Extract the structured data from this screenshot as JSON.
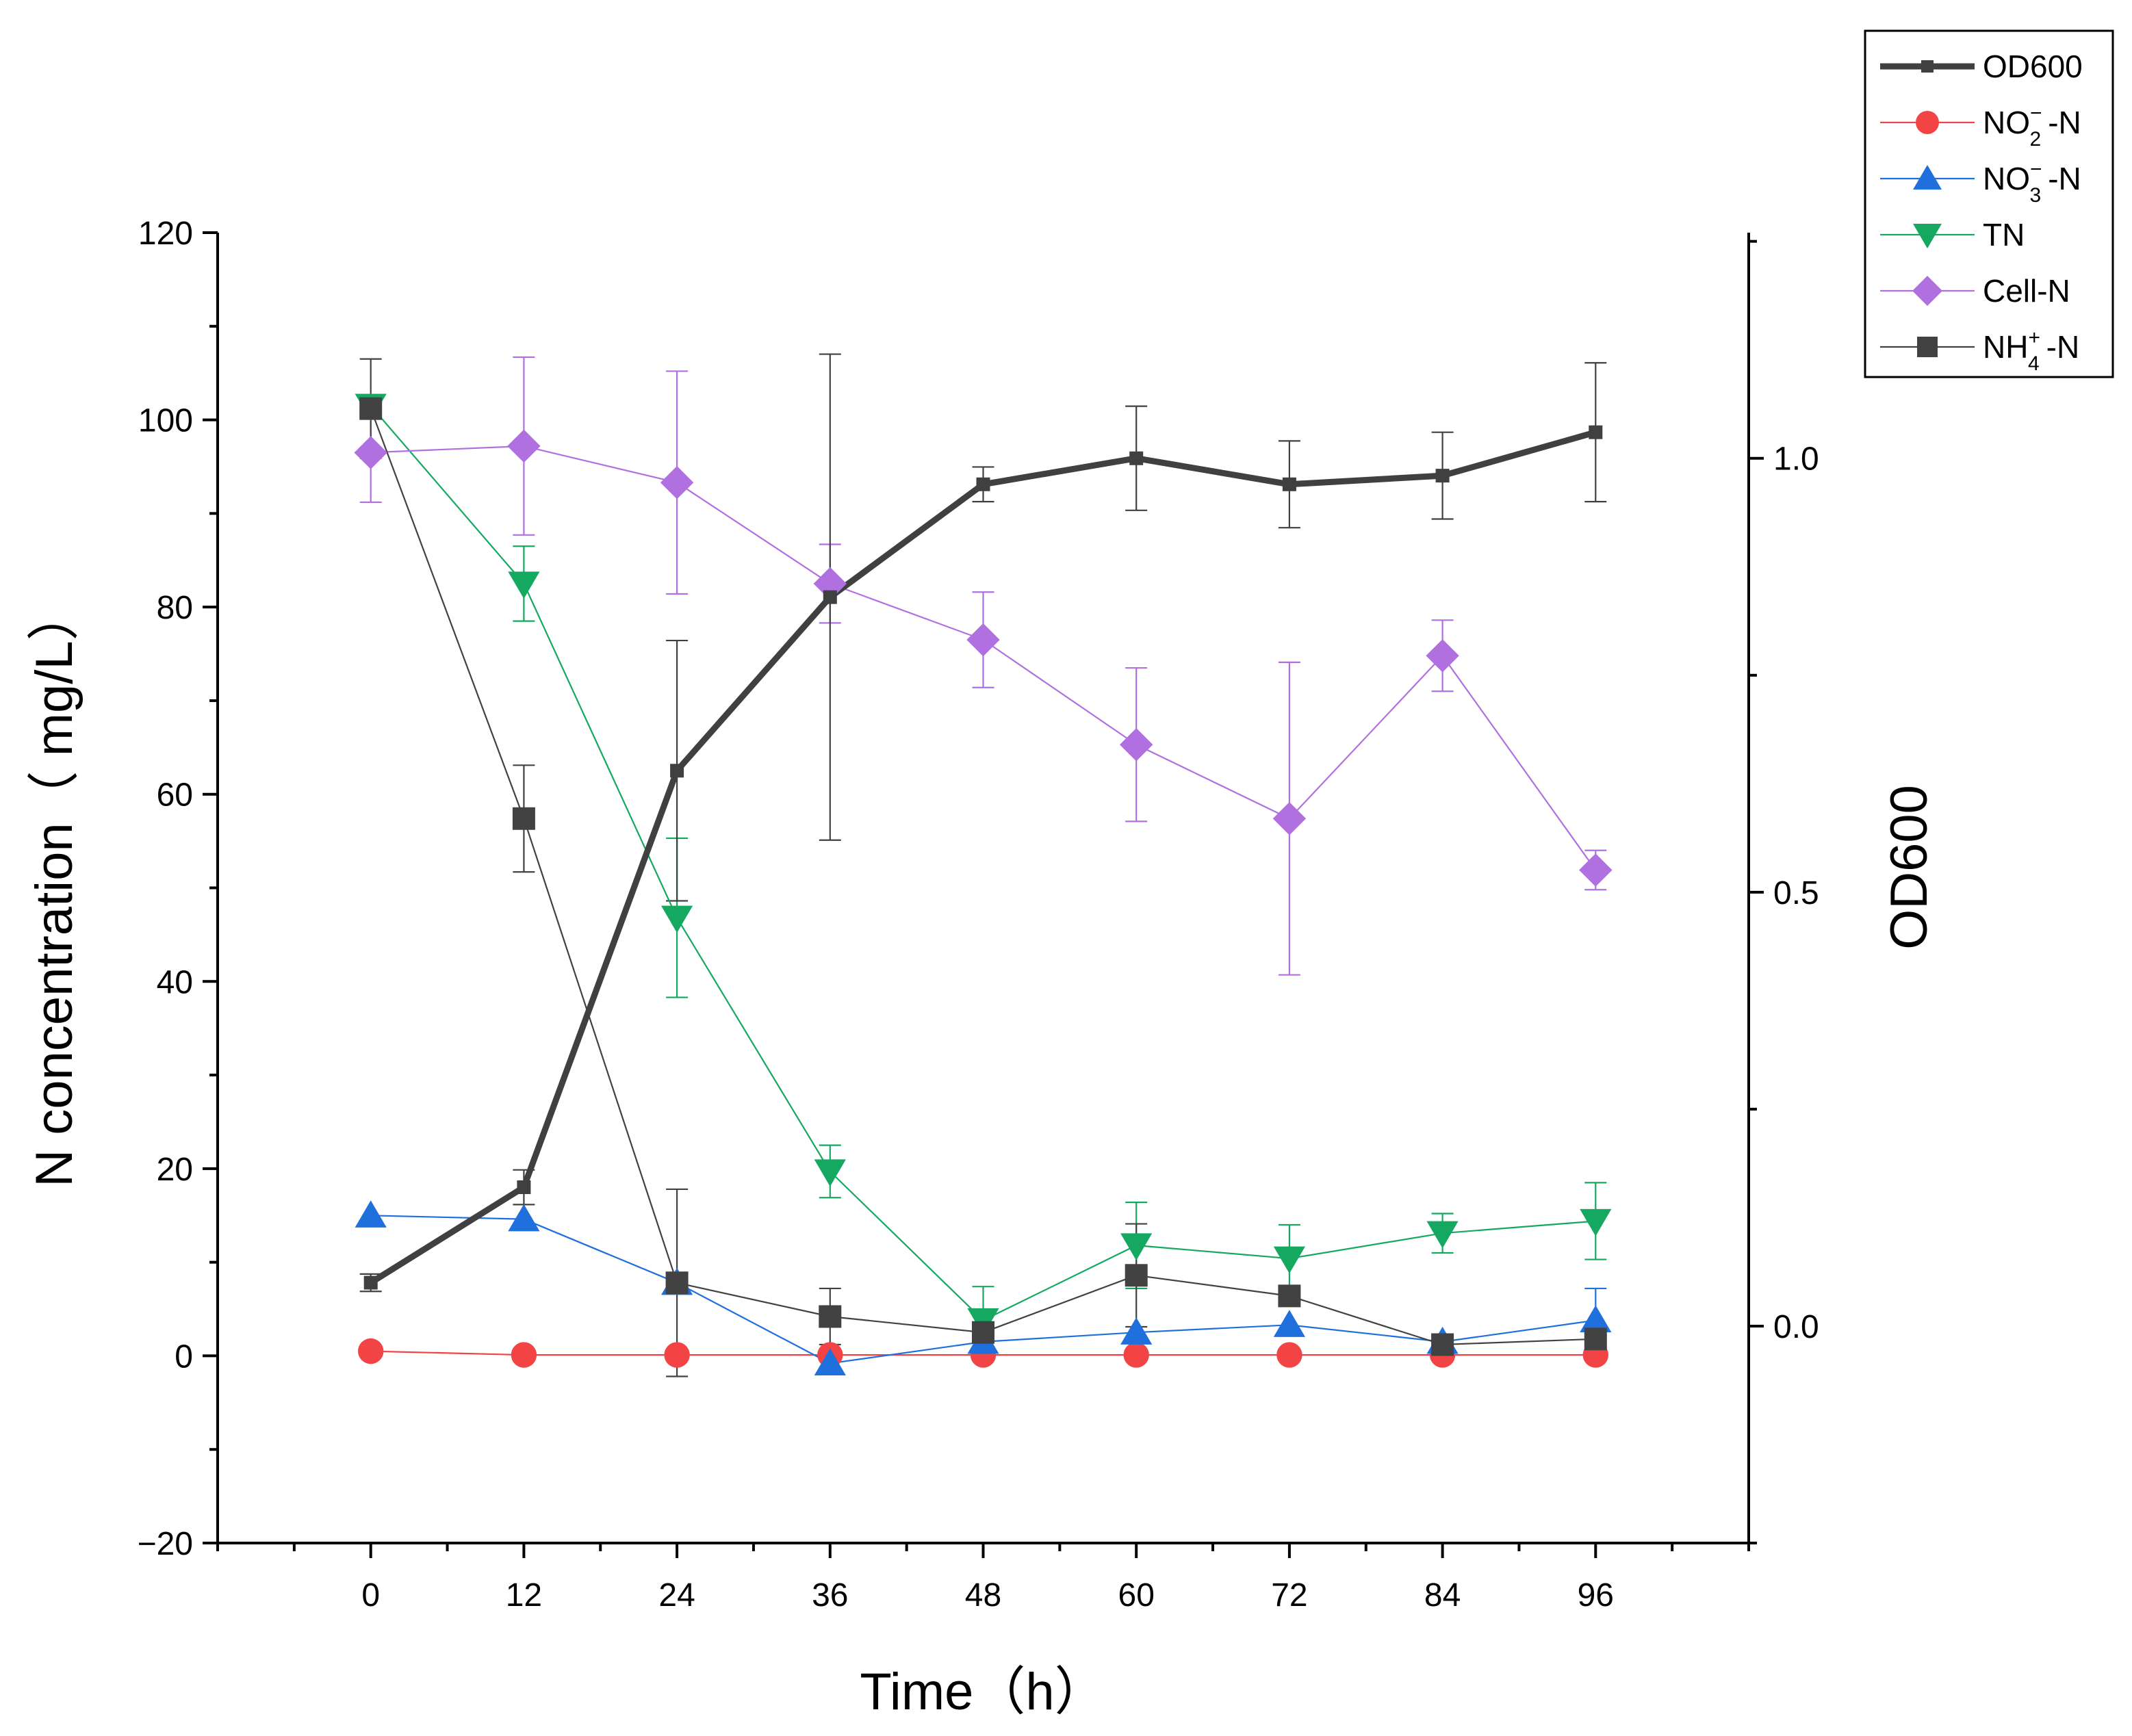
{
  "chart_data": {
    "type": "line",
    "x": [
      0,
      12,
      24,
      36,
      48,
      60,
      72,
      84,
      96
    ],
    "xlabel": "Time（h）",
    "ylabel": "N concentration（ mg/L）",
    "y2label": "OD600",
    "xlim": [
      -12,
      108
    ],
    "ylim": [
      -20,
      120
    ],
    "y2lim": [
      -0.25,
      1.26
    ],
    "xticks": [
      0,
      12,
      24,
      36,
      48,
      60,
      72,
      84,
      96
    ],
    "yticks": [
      -20,
      0,
      20,
      40,
      60,
      80,
      100,
      120
    ],
    "y2ticks": [
      0.0,
      0.5,
      1.0
    ],
    "xtick_labels": [
      "0",
      "12",
      "24",
      "36",
      "48",
      "60",
      "72",
      "84",
      "96"
    ],
    "ytick_labels": [
      "−20",
      "0",
      "20",
      "40",
      "60",
      "80",
      "100",
      "120"
    ],
    "y2tick_labels": [
      "0.0",
      "0.5",
      "1.0"
    ],
    "legend_position": "top-right, outside plot",
    "grid": false,
    "series": [
      {
        "name": "OD600",
        "legend": {
          "main": "OD600",
          "sub": "",
          "sup": "",
          "suffix": ""
        },
        "axis": "right",
        "color": "#404040",
        "marker": "square-small",
        "line_width": "thick",
        "values": [
          0.05,
          0.16,
          0.64,
          0.84,
          0.97,
          1.0,
          0.97,
          0.98,
          1.03
        ],
        "errors": [
          0.01,
          0.02,
          0.15,
          0.28,
          0.02,
          0.06,
          0.05,
          0.05,
          0.08
        ]
      },
      {
        "name": "NO2−-N",
        "legend": {
          "main": "NO",
          "sub": "2",
          "sup": "−",
          "suffix": "-N"
        },
        "axis": "left",
        "color": "#f24444",
        "marker": "circle",
        "values": [
          0.5,
          0.1,
          0.1,
          0.1,
          0.1,
          0.1,
          0.1,
          0.1,
          0.1
        ],
        "errors": [
          0,
          0,
          0,
          0,
          0,
          0,
          0,
          0,
          0
        ]
      },
      {
        "name": "NO3−-N",
        "legend": {
          "main": "NO",
          "sub": "3",
          "sup": "−",
          "suffix": "-N"
        },
        "axis": "left",
        "color": "#1f6fdd",
        "marker": "triangle-up",
        "values": [
          15,
          14.6,
          7.8,
          -0.8,
          1.5,
          2.5,
          3.3,
          1.5,
          3.8
        ],
        "errors": [
          0,
          0,
          0,
          0,
          0,
          0,
          0,
          0,
          3.4
        ]
      },
      {
        "name": "TN",
        "legend": {
          "main": "TN",
          "sub": "",
          "sup": "",
          "suffix": ""
        },
        "axis": "left",
        "color": "#14a860",
        "marker": "triangle-down",
        "values": [
          101.5,
          82.5,
          46.8,
          19.7,
          3.8,
          11.8,
          10.4,
          13.1,
          14.4
        ],
        "errors": [
          0,
          4,
          8.5,
          2.8,
          3.6,
          4.6,
          3.6,
          2.1,
          4.1
        ]
      },
      {
        "name": "Cell-N",
        "legend": {
          "main": "Cell-N",
          "sub": "",
          "sup": "",
          "suffix": ""
        },
        "axis": "left",
        "color": "#b070e0",
        "marker": "diamond",
        "values": [
          96.5,
          97.2,
          93.3,
          82.5,
          76.5,
          65.3,
          57.4,
          74.8,
          51.9
        ],
        "errors": [
          5.3,
          9.5,
          11.9,
          4.2,
          5.1,
          8.2,
          16.7,
          3.8,
          2.1
        ]
      },
      {
        "name": "NH4+-N",
        "legend": {
          "main": "NH",
          "sub": "4",
          "sup": "+",
          "suffix": "-N"
        },
        "axis": "left",
        "color": "#424242",
        "marker": "square",
        "values": [
          101.2,
          57.4,
          7.8,
          4.2,
          2.5,
          8.6,
          6.4,
          1.2,
          1.8
        ],
        "errors": [
          5.3,
          5.7,
          10,
          3,
          0,
          5.5,
          0,
          0,
          0
        ]
      }
    ]
  }
}
